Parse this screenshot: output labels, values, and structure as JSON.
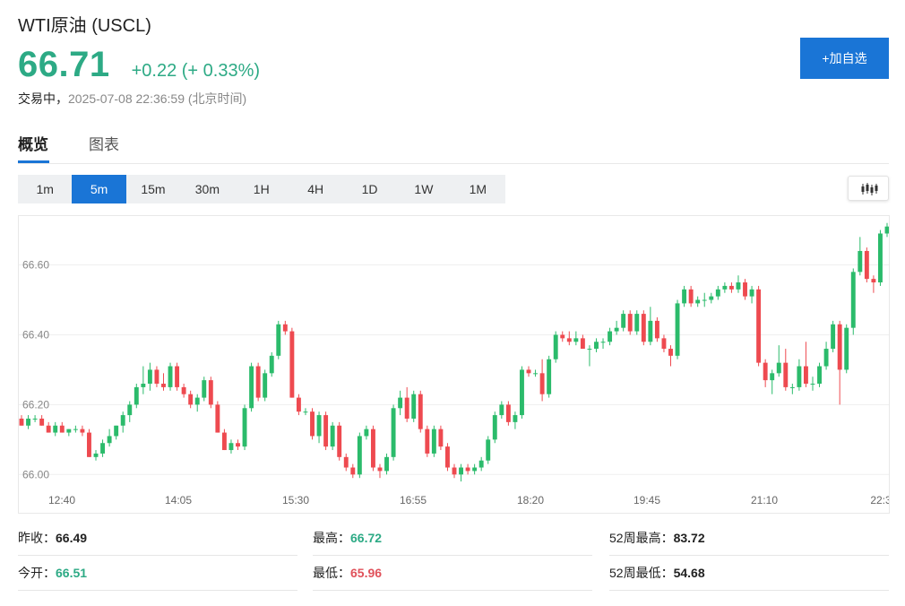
{
  "header": {
    "title": "WTI原油  (USCL)",
    "price": "66.71",
    "change": "+0.22 (+ 0.33%)",
    "status_state": "交易中，",
    "status_time": "2025-07-08 22:36:59  (北京时间)",
    "add_label": "+加自选"
  },
  "tabs": [
    {
      "label": "概览"
    },
    {
      "label": "图表"
    }
  ],
  "intervals": [
    "1m",
    "5m",
    "15m",
    "30m",
    "1H",
    "4H",
    "1D",
    "1W",
    "1M"
  ],
  "active_interval": "5m",
  "icons": {
    "chart_type": "candlestick-icon"
  },
  "colors": {
    "up": "#2daa85",
    "down": "#e0525b",
    "accent": "#1a75d6",
    "candle_up": "#2bbb6b",
    "candle_down": "#ee4a50"
  },
  "stats": {
    "prev_close_label": "昨收：",
    "prev_close": "66.49",
    "high_label": "最高：",
    "high": "66.72",
    "high52_label": "52周最高：",
    "high52": "83.72",
    "open_label": "今开：",
    "open": "66.51",
    "low_label": "最低：",
    "low": "65.96",
    "low52_label": "52周最低：",
    "low52": "54.68"
  },
  "chart_data": {
    "type": "candlestick",
    "y_ticks": [
      "66.00",
      "66.20",
      "66.40",
      "66.60"
    ],
    "ylim": [
      65.97,
      66.74
    ],
    "x_ticks": [
      "12:40",
      "14:05",
      "15:30",
      "16:55",
      "18:20",
      "19:45",
      "21:10",
      "22:3"
    ],
    "candles": [
      [
        66.16,
        66.17,
        66.14,
        66.14
      ],
      [
        66.14,
        66.17,
        66.13,
        66.16
      ],
      [
        66.16,
        66.17,
        66.15,
        66.16
      ],
      [
        66.16,
        66.17,
        66.14,
        66.14
      ],
      [
        66.14,
        66.15,
        66.12,
        66.12
      ],
      [
        66.12,
        66.15,
        66.11,
        66.14
      ],
      [
        66.14,
        66.15,
        66.12,
        66.12
      ],
      [
        66.12,
        66.13,
        66.11,
        66.13
      ],
      [
        66.13,
        66.14,
        66.12,
        66.13
      ],
      [
        66.13,
        66.14,
        66.11,
        66.12
      ],
      [
        66.12,
        66.13,
        66.05,
        66.05
      ],
      [
        66.05,
        66.07,
        66.04,
        66.06
      ],
      [
        66.06,
        66.1,
        66.05,
        66.09
      ],
      [
        66.09,
        66.13,
        66.08,
        66.11
      ],
      [
        66.11,
        66.14,
        66.1,
        66.14
      ],
      [
        66.14,
        66.18,
        66.12,
        66.17
      ],
      [
        66.17,
        66.21,
        66.15,
        66.2
      ],
      [
        66.2,
        66.26,
        66.19,
        66.25
      ],
      [
        66.25,
        66.31,
        66.23,
        66.26
      ],
      [
        66.26,
        66.32,
        66.24,
        66.3
      ],
      [
        66.3,
        66.31,
        66.25,
        66.26
      ],
      [
        66.26,
        66.29,
        66.24,
        66.25
      ],
      [
        66.25,
        66.32,
        66.24,
        66.31
      ],
      [
        66.31,
        66.32,
        66.24,
        66.25
      ],
      [
        66.25,
        66.26,
        66.22,
        66.23
      ],
      [
        66.23,
        66.24,
        66.19,
        66.2
      ],
      [
        66.2,
        66.23,
        66.18,
        66.22
      ],
      [
        66.22,
        66.28,
        66.21,
        66.27
      ],
      [
        66.27,
        66.28,
        66.19,
        66.2
      ],
      [
        66.2,
        66.21,
        66.12,
        66.12
      ],
      [
        66.12,
        66.13,
        66.07,
        66.07
      ],
      [
        66.07,
        66.1,
        66.06,
        66.09
      ],
      [
        66.09,
        66.1,
        66.07,
        66.08
      ],
      [
        66.08,
        66.2,
        66.07,
        66.19
      ],
      [
        66.19,
        66.32,
        66.18,
        66.31
      ],
      [
        66.31,
        66.32,
        66.21,
        66.22
      ],
      [
        66.22,
        66.3,
        66.21,
        66.29
      ],
      [
        66.29,
        66.35,
        66.28,
        66.34
      ],
      [
        66.34,
        66.44,
        66.33,
        66.43
      ],
      [
        66.43,
        66.44,
        66.4,
        66.41
      ],
      [
        66.41,
        66.42,
        66.22,
        66.22
      ],
      [
        66.22,
        66.23,
        66.17,
        66.18
      ],
      [
        66.18,
        66.19,
        66.17,
        66.18
      ],
      [
        66.18,
        66.19,
        66.1,
        66.11
      ],
      [
        66.11,
        66.18,
        66.09,
        66.17
      ],
      [
        66.17,
        66.18,
        66.07,
        66.08
      ],
      [
        66.08,
        66.15,
        66.07,
        66.14
      ],
      [
        66.14,
        66.15,
        66.04,
        66.05
      ],
      [
        66.05,
        66.06,
        66.01,
        66.02
      ],
      [
        66.02,
        66.03,
        65.99,
        66.0
      ],
      [
        66.0,
        66.12,
        65.99,
        66.11
      ],
      [
        66.11,
        66.14,
        66.1,
        66.13
      ],
      [
        66.13,
        66.14,
        66.01,
        66.02
      ],
      [
        66.02,
        66.03,
        65.99,
        66.01
      ],
      [
        66.01,
        66.06,
        66.0,
        66.05
      ],
      [
        66.05,
        66.2,
        66.04,
        66.19
      ],
      [
        66.19,
        66.24,
        66.17,
        66.22
      ],
      [
        66.22,
        66.25,
        66.15,
        66.16
      ],
      [
        66.16,
        66.24,
        66.15,
        66.23
      ],
      [
        66.23,
        66.24,
        66.12,
        66.13
      ],
      [
        66.13,
        66.14,
        66.05,
        66.06
      ],
      [
        66.06,
        66.14,
        66.05,
        66.13
      ],
      [
        66.13,
        66.14,
        66.07,
        66.08
      ],
      [
        66.08,
        66.09,
        66.01,
        66.02
      ],
      [
        66.02,
        66.03,
        65.99,
        66.0
      ],
      [
        66.0,
        66.03,
        65.98,
        66.02
      ],
      [
        66.02,
        66.03,
        66.0,
        66.01
      ],
      [
        66.01,
        66.03,
        66.0,
        66.02
      ],
      [
        66.02,
        66.05,
        66.01,
        66.04
      ],
      [
        66.04,
        66.11,
        66.03,
        66.1
      ],
      [
        66.1,
        66.18,
        66.09,
        66.17
      ],
      [
        66.17,
        66.21,
        66.16,
        66.2
      ],
      [
        66.2,
        66.21,
        66.14,
        66.15
      ],
      [
        66.15,
        66.18,
        66.13,
        66.17
      ],
      [
        66.17,
        66.31,
        66.16,
        66.3
      ],
      [
        66.3,
        66.31,
        66.28,
        66.29
      ],
      [
        66.29,
        66.3,
        66.28,
        66.29
      ],
      [
        66.29,
        66.33,
        66.21,
        66.23
      ],
      [
        66.23,
        66.34,
        66.22,
        66.33
      ],
      [
        66.33,
        66.41,
        66.32,
        66.4
      ],
      [
        66.4,
        66.41,
        66.38,
        66.39
      ],
      [
        66.39,
        66.41,
        66.37,
        66.38
      ],
      [
        66.38,
        66.41,
        66.37,
        66.39
      ],
      [
        66.39,
        66.4,
        66.36,
        66.36
      ],
      [
        66.36,
        66.37,
        66.31,
        66.36
      ],
      [
        66.36,
        66.39,
        66.35,
        66.38
      ],
      [
        66.38,
        66.39,
        66.36,
        66.38
      ],
      [
        66.38,
        66.42,
        66.37,
        66.41
      ],
      [
        66.41,
        66.44,
        66.4,
        66.42
      ],
      [
        66.42,
        66.47,
        66.41,
        66.46
      ],
      [
        66.46,
        66.47,
        66.4,
        66.41
      ],
      [
        66.41,
        66.47,
        66.4,
        66.46
      ],
      [
        66.46,
        66.47,
        66.37,
        66.38
      ],
      [
        66.38,
        66.48,
        66.37,
        66.44
      ],
      [
        66.44,
        66.45,
        66.38,
        66.39
      ],
      [
        66.39,
        66.4,
        66.35,
        66.36
      ],
      [
        66.36,
        66.37,
        66.31,
        66.34
      ],
      [
        66.34,
        66.5,
        66.33,
        66.49
      ],
      [
        66.49,
        66.54,
        66.48,
        66.53
      ],
      [
        66.53,
        66.54,
        66.48,
        66.49
      ],
      [
        66.49,
        66.51,
        66.48,
        66.5
      ],
      [
        66.5,
        66.52,
        66.48,
        66.5
      ],
      [
        66.5,
        66.52,
        66.49,
        66.51
      ],
      [
        66.51,
        66.54,
        66.5,
        66.53
      ],
      [
        66.53,
        66.55,
        66.52,
        66.54
      ],
      [
        66.54,
        66.55,
        66.52,
        66.53
      ],
      [
        66.53,
        66.57,
        66.52,
        66.55
      ],
      [
        66.55,
        66.56,
        66.5,
        66.51
      ],
      [
        66.51,
        66.54,
        66.49,
        66.53
      ],
      [
        66.53,
        66.54,
        66.31,
        66.32
      ],
      [
        66.32,
        66.33,
        66.25,
        66.27
      ],
      [
        66.27,
        66.3,
        66.23,
        66.29
      ],
      [
        66.29,
        66.37,
        66.28,
        66.32
      ],
      [
        66.32,
        66.36,
        66.24,
        66.25
      ],
      [
        66.25,
        66.26,
        66.23,
        66.25
      ],
      [
        66.25,
        66.33,
        66.24,
        66.31
      ],
      [
        66.31,
        66.38,
        66.25,
        66.26
      ],
      [
        66.26,
        66.28,
        66.24,
        66.26
      ],
      [
        66.26,
        66.32,
        66.25,
        66.31
      ],
      [
        66.31,
        66.38,
        66.3,
        66.36
      ],
      [
        66.36,
        66.44,
        66.35,
        66.43
      ],
      [
        66.43,
        66.44,
        66.2,
        66.3
      ],
      [
        66.3,
        66.43,
        66.29,
        66.42
      ],
      [
        66.42,
        66.59,
        66.4,
        66.58
      ],
      [
        66.58,
        66.68,
        66.57,
        66.64
      ],
      [
        66.64,
        66.65,
        66.55,
        66.56
      ],
      [
        66.56,
        66.57,
        66.52,
        66.55
      ],
      [
        66.55,
        66.7,
        66.54,
        66.69
      ],
      [
        66.69,
        66.72,
        66.68,
        66.71
      ]
    ]
  }
}
